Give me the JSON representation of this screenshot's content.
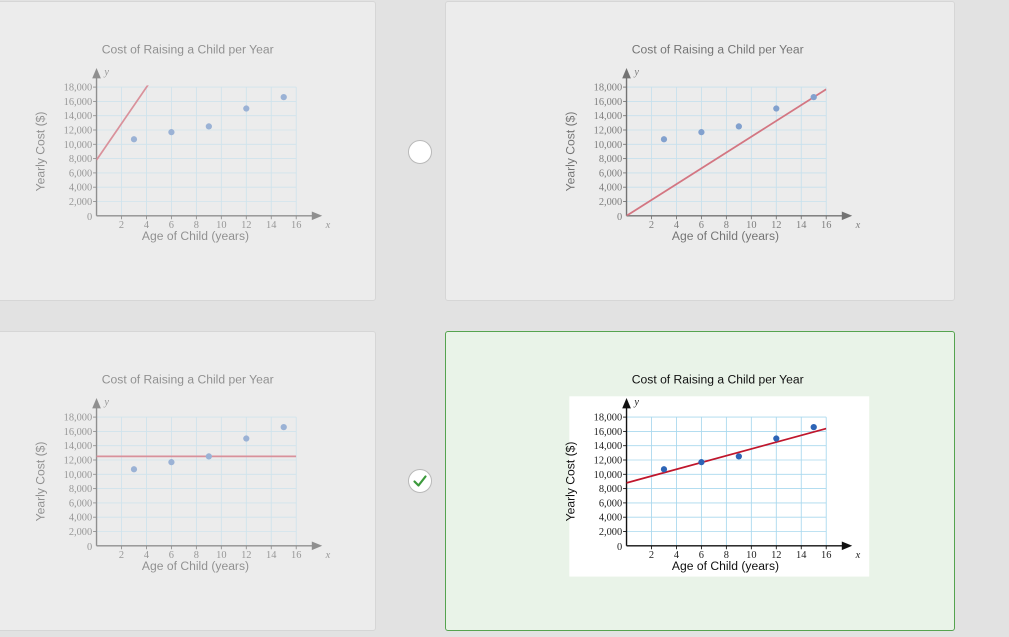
{
  "question": {
    "options": [
      {
        "id": "tl",
        "state": "faded",
        "title": "Cost of Raising a Child per Year",
        "xlabel": "Age of Child (years)",
        "ylabel": "Yearly Cost ($)"
      },
      {
        "id": "tr",
        "state": "faded",
        "title": "Cost of Raising a Child per Year",
        "xlabel": "Age of Child (years)",
        "ylabel": "Yearly Cost ($)"
      },
      {
        "id": "bl",
        "state": "faded",
        "title": "Cost of Raising a Child per Year",
        "xlabel": "Age of Child (years)",
        "ylabel": "Yearly Cost ($)"
      },
      {
        "id": "br",
        "state": "selected",
        "title": "Cost of Raising a Child per Year",
        "xlabel": "Age of Child (years)",
        "ylabel": "Yearly Cost ($)"
      }
    ],
    "selected_option": "br"
  },
  "colors": {
    "selected_border": "#55a34f",
    "checkmark": "#3c9a3c",
    "point": "#2d64b6",
    "line": "#c0162c",
    "grid": "#a8d8ee"
  },
  "icons": {
    "selected_radio": "checkmark-icon"
  },
  "chart_data": [
    {
      "id": "tl",
      "type": "scatter",
      "title": "Cost of Raising a Child per Year",
      "xlabel": "Age of Child (years)",
      "ylabel": "Yearly Cost ($)",
      "x_axis_letter": "x",
      "y_axis_letter": "y",
      "xlim": [
        0,
        16
      ],
      "ylim": [
        0,
        18000
      ],
      "xticks": [
        2,
        4,
        6,
        8,
        10,
        12,
        14,
        16
      ],
      "yticks": [
        2000,
        4000,
        6000,
        8000,
        10000,
        12000,
        14000,
        16000,
        18000
      ],
      "xtick_labels": [
        "2",
        "4",
        "6",
        "8",
        "10",
        "12",
        "14",
        "16"
      ],
      "ytick_labels": [
        "2,000",
        "4,000",
        "6,000",
        "8,000",
        "10,000",
        "12,000",
        "14,000",
        "16,000",
        "18,000"
      ],
      "origin_label": "0",
      "points": {
        "x": [
          3,
          6,
          9,
          12,
          15
        ],
        "y": [
          10700,
          11700,
          12500,
          15000,
          16600
        ]
      },
      "trend_line": {
        "x": [
          0,
          4.4
        ],
        "y": [
          7800,
          19000
        ]
      },
      "grid": true
    },
    {
      "id": "tr",
      "type": "scatter",
      "title": "Cost of Raising a Child per Year",
      "xlabel": "Age of Child (years)",
      "ylabel": "Yearly Cost ($)",
      "x_axis_letter": "x",
      "y_axis_letter": "y",
      "xlim": [
        0,
        16
      ],
      "ylim": [
        0,
        18000
      ],
      "xticks": [
        2,
        4,
        6,
        8,
        10,
        12,
        14,
        16
      ],
      "yticks": [
        2000,
        4000,
        6000,
        8000,
        10000,
        12000,
        14000,
        16000,
        18000
      ],
      "xtick_labels": [
        "2",
        "4",
        "6",
        "8",
        "10",
        "12",
        "14",
        "16"
      ],
      "ytick_labels": [
        "2,000",
        "4,000",
        "6,000",
        "8,000",
        "10,000",
        "12,000",
        "14,000",
        "16,000",
        "18,000"
      ],
      "origin_label": "0",
      "points": {
        "x": [
          3,
          6,
          9,
          12,
          15
        ],
        "y": [
          10700,
          11700,
          12500,
          15000,
          16600
        ]
      },
      "trend_line": {
        "x": [
          0,
          16
        ],
        "y": [
          0,
          17700
        ]
      },
      "grid": true
    },
    {
      "id": "bl",
      "type": "scatter",
      "title": "Cost of Raising a Child per Year",
      "xlabel": "Age of Child (years)",
      "ylabel": "Yearly Cost ($)",
      "x_axis_letter": "x",
      "y_axis_letter": "y",
      "xlim": [
        0,
        16
      ],
      "ylim": [
        0,
        18000
      ],
      "xticks": [
        2,
        4,
        6,
        8,
        10,
        12,
        14,
        16
      ],
      "yticks": [
        2000,
        4000,
        6000,
        8000,
        10000,
        12000,
        14000,
        16000,
        18000
      ],
      "xtick_labels": [
        "2",
        "4",
        "6",
        "8",
        "10",
        "12",
        "14",
        "16"
      ],
      "ytick_labels": [
        "2,000",
        "4,000",
        "6,000",
        "8,000",
        "10,000",
        "12,000",
        "14,000",
        "16,000",
        "18,000"
      ],
      "origin_label": "0",
      "points": {
        "x": [
          3,
          6,
          9,
          12,
          15
        ],
        "y": [
          10700,
          11700,
          12500,
          15000,
          16600
        ]
      },
      "trend_line": {
        "x": [
          0,
          16
        ],
        "y": [
          12500,
          12500
        ]
      },
      "grid": true
    },
    {
      "id": "br",
      "type": "scatter",
      "title": "Cost of Raising a Child per Year",
      "xlabel": "Age of Child (years)",
      "ylabel": "Yearly Cost ($)",
      "x_axis_letter": "x",
      "y_axis_letter": "y",
      "xlim": [
        0,
        16
      ],
      "ylim": [
        0,
        18000
      ],
      "xticks": [
        2,
        4,
        6,
        8,
        10,
        12,
        14,
        16
      ],
      "yticks": [
        2000,
        4000,
        6000,
        8000,
        10000,
        12000,
        14000,
        16000,
        18000
      ],
      "xtick_labels": [
        "2",
        "4",
        "6",
        "8",
        "10",
        "12",
        "14",
        "16"
      ],
      "ytick_labels": [
        "2,000",
        "4,000",
        "6,000",
        "8,000",
        "10,000",
        "12,000",
        "14,000",
        "16,000",
        "18,000"
      ],
      "origin_label": "0",
      "points": {
        "x": [
          3,
          6,
          9,
          12,
          15
        ],
        "y": [
          10700,
          11700,
          12500,
          15000,
          16600
        ]
      },
      "trend_line": {
        "x": [
          0,
          16
        ],
        "y": [
          8800,
          16400
        ]
      },
      "grid": true
    }
  ]
}
